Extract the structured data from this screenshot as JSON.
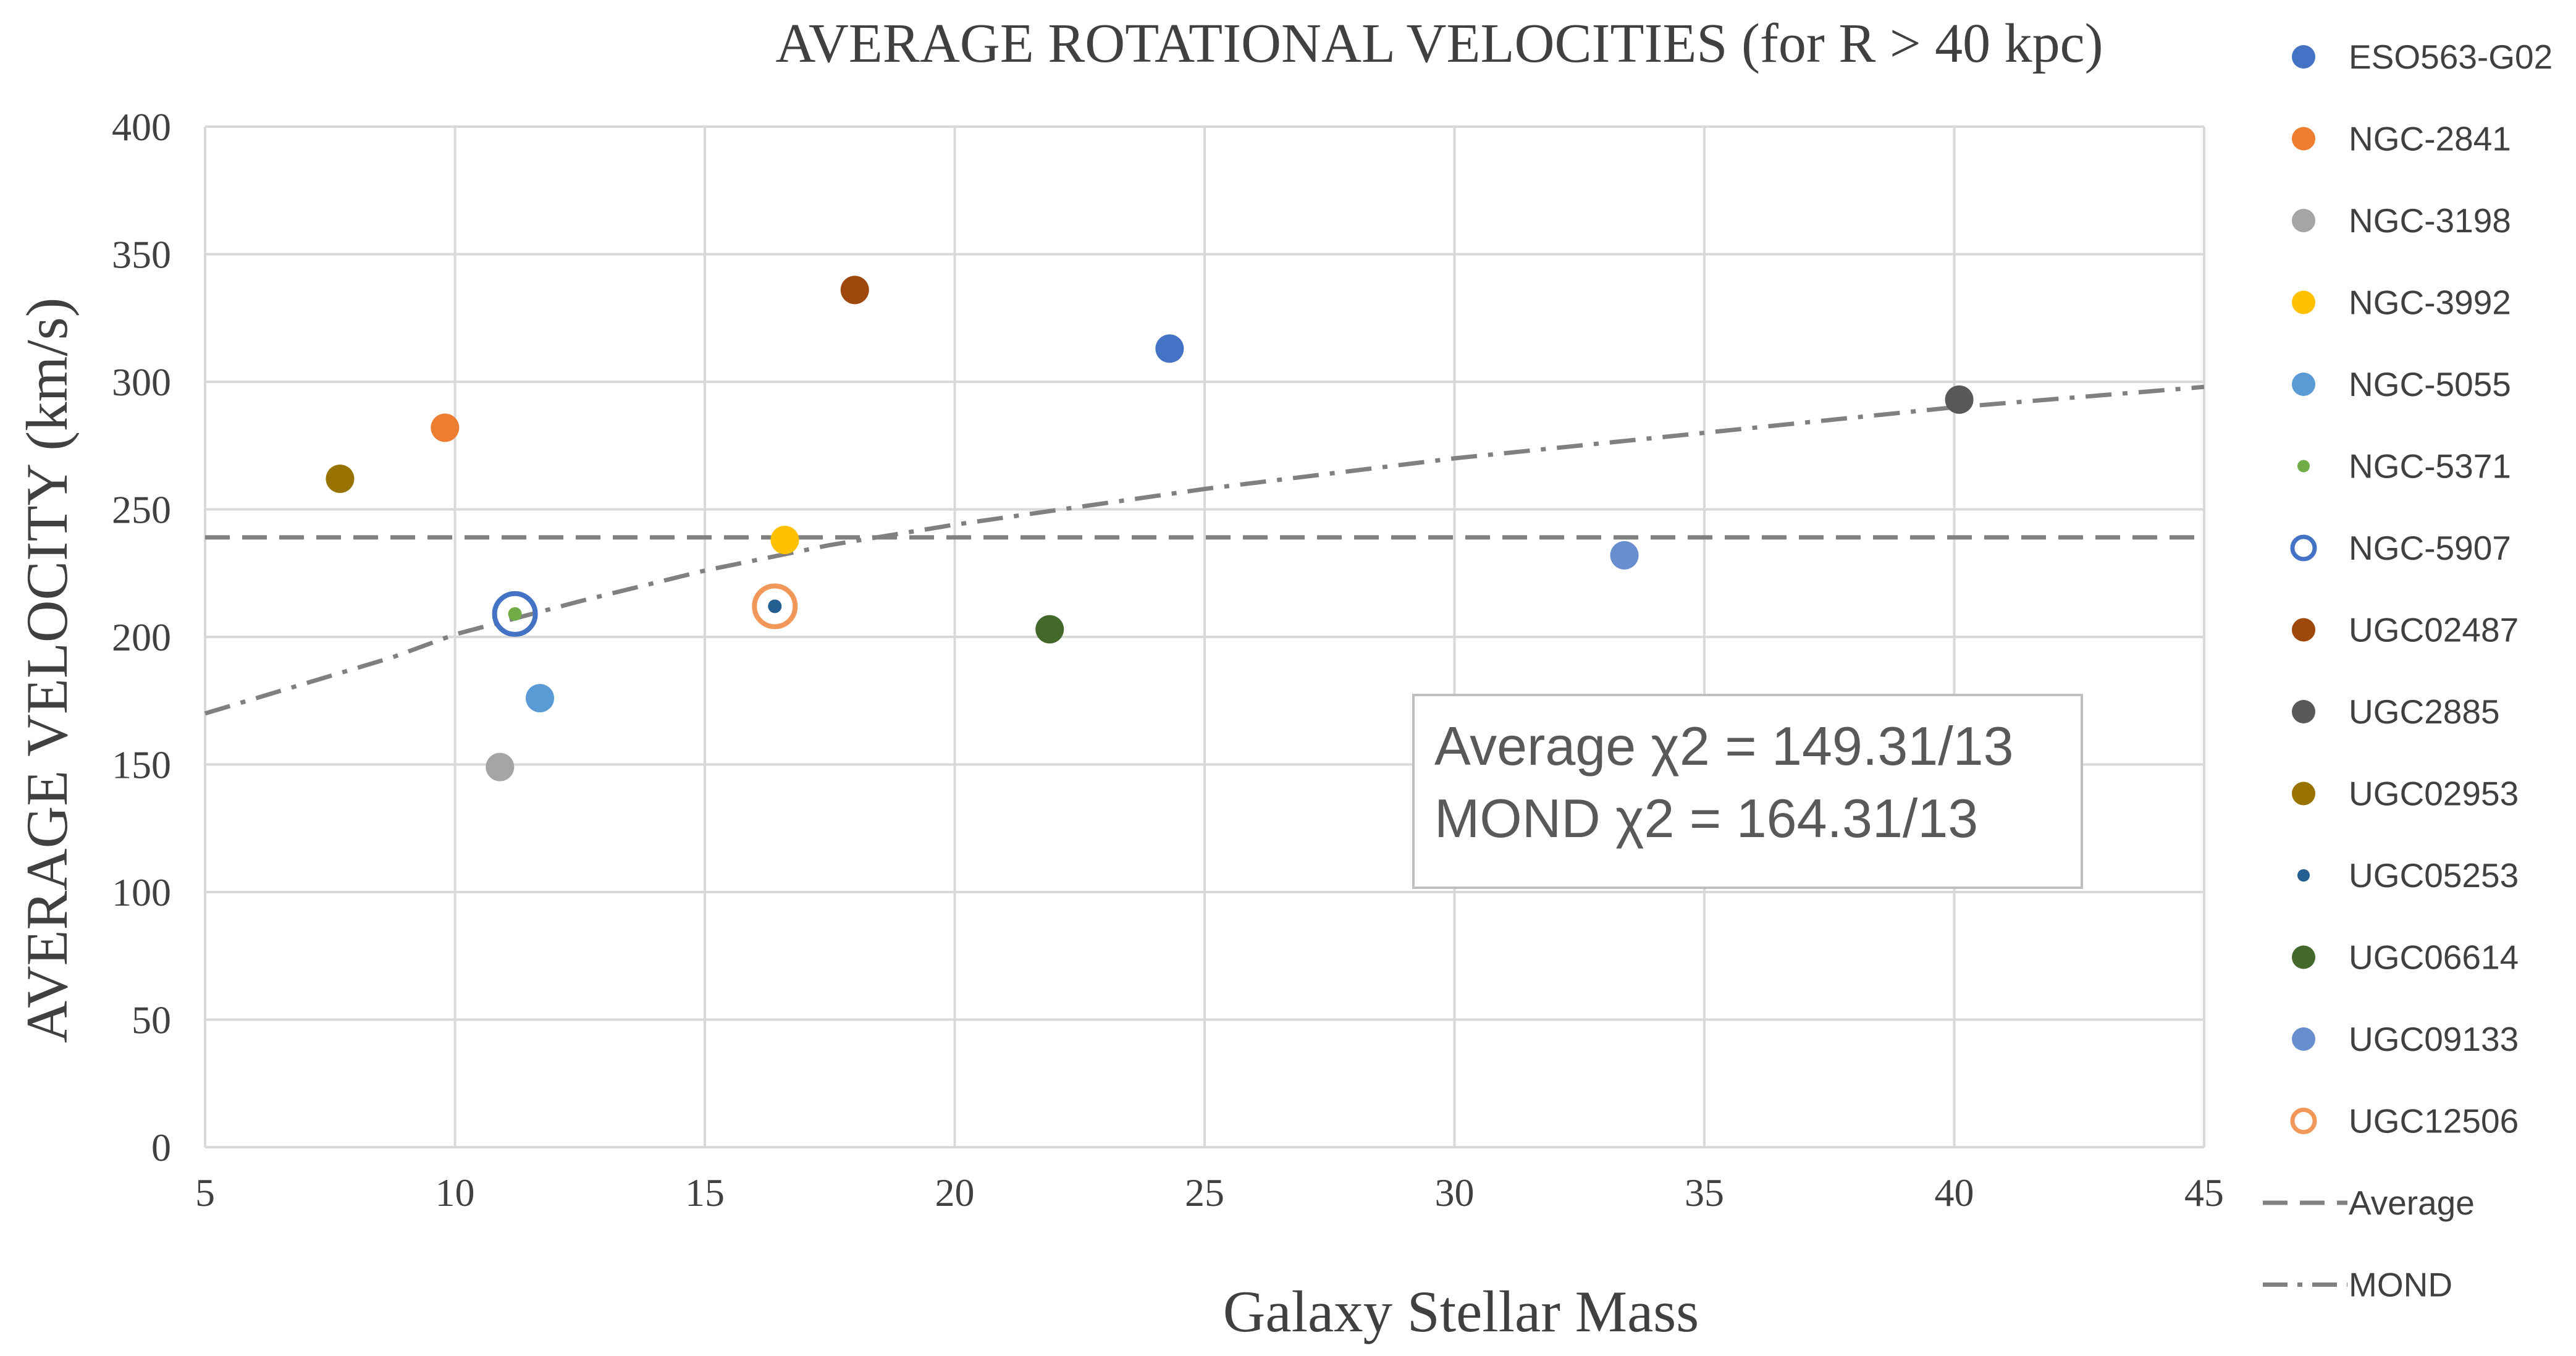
{
  "chart_data": {
    "type": "scatter",
    "title": "AVERAGE ROTATIONAL VELOCITIES (for R > 40 kpc)",
    "xlabel": "Galaxy Stellar Mass",
    "ylabel": "AVERAGE VELOCITY (km/s)",
    "xlim": [
      5,
      45
    ],
    "ylim": [
      0,
      400
    ],
    "xticks": [
      5,
      10,
      15,
      20,
      25,
      30,
      35,
      40,
      45
    ],
    "yticks": [
      0,
      50,
      100,
      150,
      200,
      250,
      300,
      350,
      400
    ],
    "grid": true,
    "legend_position": "right",
    "series": [
      {
        "name": "ESO563-G02",
        "x": 24.3,
        "y": 313,
        "color": "#4472C4",
        "marker": "filled",
        "size": "large"
      },
      {
        "name": "NGC-2841",
        "x": 9.8,
        "y": 282,
        "color": "#ED7D31",
        "marker": "filled",
        "size": "large"
      },
      {
        "name": "NGC-3198",
        "x": 10.9,
        "y": 149,
        "color": "#A5A5A5",
        "marker": "filled",
        "size": "large"
      },
      {
        "name": "NGC-3992",
        "x": 16.6,
        "y": 238,
        "color": "#FFC000",
        "marker": "filled",
        "size": "large"
      },
      {
        "name": "NGC-5055",
        "x": 11.7,
        "y": 176,
        "color": "#5B9BD5",
        "marker": "filled",
        "size": "large"
      },
      {
        "name": "NGC-5371",
        "x": 11.2,
        "y": 209,
        "color": "#70AD47",
        "marker": "filled",
        "size": "small"
      },
      {
        "name": "NGC-5907",
        "x": 11.2,
        "y": 209,
        "color": "#4472C4",
        "marker": "open",
        "size": "xlarge"
      },
      {
        "name": "UGC02487",
        "x": 18.0,
        "y": 336,
        "color": "#9E480E",
        "marker": "filled",
        "size": "large"
      },
      {
        "name": "UGC2885",
        "x": 40.1,
        "y": 293,
        "color": "#595959",
        "marker": "filled",
        "size": "large"
      },
      {
        "name": "UGC02953",
        "x": 7.7,
        "y": 262,
        "color": "#997300",
        "marker": "filled",
        "size": "large"
      },
      {
        "name": "UGC05253",
        "x": 16.4,
        "y": 212,
        "color": "#255E91",
        "marker": "filled",
        "size": "small"
      },
      {
        "name": "UGC06614",
        "x": 21.9,
        "y": 203,
        "color": "#43682B",
        "marker": "filled",
        "size": "large"
      },
      {
        "name": "UGC09133",
        "x": 33.4,
        "y": 232,
        "color": "#698ED0",
        "marker": "filled",
        "size": "large"
      },
      {
        "name": "UGC12506",
        "x": 16.4,
        "y": 212,
        "color": "#F1975A",
        "marker": "open",
        "size": "xlarge"
      }
    ],
    "lines": [
      {
        "name": "Average",
        "style": "dashed",
        "color": "#808080",
        "x": [
          5,
          45
        ],
        "y": [
          239,
          239
        ]
      },
      {
        "name": "MOND",
        "style": "dash-dot",
        "color": "#808080",
        "x": [
          5,
          8.75,
          10,
          12.5,
          15,
          17.5,
          20,
          25,
          30,
          35,
          40,
          45
        ],
        "y": [
          170,
          192,
          201,
          214,
          226,
          236,
          244,
          258,
          270,
          280,
          290,
          298
        ]
      }
    ],
    "annotation": {
      "line1": "Average  χ2 = 149.31/13",
      "line2": "MOND  χ2 = 164.31/13"
    }
  }
}
